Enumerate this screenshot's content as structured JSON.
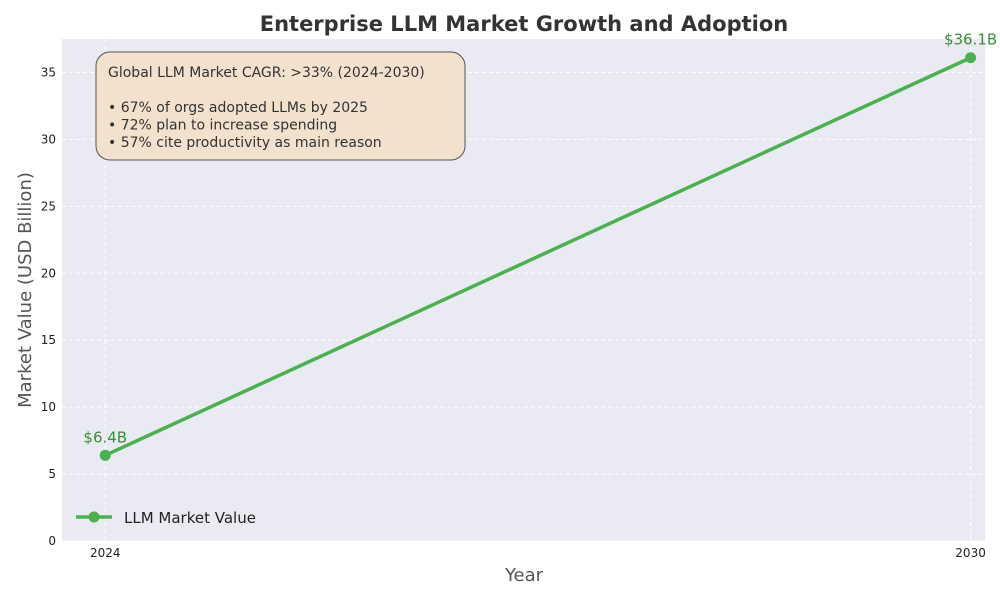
{
  "chart_data": {
    "type": "line",
    "title": "Enterprise LLM Market Growth and Adoption",
    "xlabel": "Year",
    "ylabel": "Market Value (USD Billion)",
    "x": [
      2024,
      2030
    ],
    "xticks": [
      "2024",
      "2030"
    ],
    "ylim": [
      0,
      37.5
    ],
    "yticks": [
      0,
      5,
      10,
      15,
      20,
      25,
      30,
      35
    ],
    "grid": true,
    "legend_position": "lower-left",
    "series": [
      {
        "name": "LLM Market Value",
        "values": [
          6.4,
          36.1
        ],
        "data_labels": [
          "$6.4B",
          "$36.1B"
        ],
        "color": "#4caf50"
      }
    ],
    "annotation": {
      "lines": [
        "Global LLM Market CAGR: >33% (2024-2030)",
        "",
        "• 67% of orgs adopted LLMs by 2025",
        "• 72% plan to increase spending",
        "• 57% cite productivity as main reason"
      ]
    }
  },
  "colors": {
    "plot_background": "#eaeaf2",
    "grid": "#ffffff",
    "series": "#4caf50",
    "data_label": "#3a8f3a",
    "annotation_fill": "#f2e1cc",
    "annotation_border": "#555555"
  }
}
